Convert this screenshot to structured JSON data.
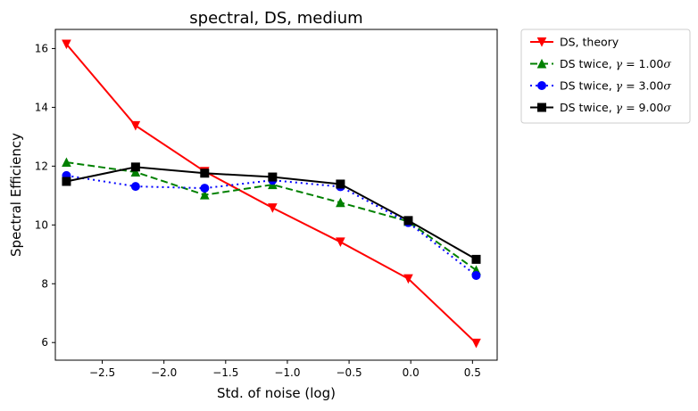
{
  "chart_data": {
    "type": "line",
    "title": "spectral, DS, medium",
    "xlabel": "Std. of noise (log)",
    "ylabel": "Spectral Efficiency",
    "xlim": [
      -2.88,
      0.7
    ],
    "ylim": [
      5.4,
      16.65
    ],
    "xticks": [
      -2.5,
      -2.0,
      -1.5,
      -1.0,
      -0.5,
      0.0,
      0.5
    ],
    "xtick_labels": [
      "−2.5",
      "−2.0",
      "−1.5",
      "−1.0",
      "−0.5",
      "0.0",
      "0.5"
    ],
    "yticks": [
      6,
      8,
      10,
      12,
      14,
      16
    ],
    "ytick_labels": [
      "6",
      "8",
      "10",
      "12",
      "14",
      "16"
    ],
    "grid": false,
    "legend_position": "outside-top-right",
    "x": [
      -2.79,
      -2.23,
      -1.67,
      -1.12,
      -0.57,
      -0.02,
      0.53
    ],
    "series": [
      {
        "name": "DS, theory",
        "prefix": "DS, theory",
        "gamma": "",
        "color": "#ff0000",
        "dash": "",
        "marker": "triangle-down",
        "values": [
          16.15,
          13.38,
          11.82,
          10.58,
          9.42,
          8.17,
          5.98
        ]
      },
      {
        "name": "DS twice, γ = 1.00σ",
        "prefix": "DS twice, ",
        "gamma": "1.00",
        "color": "#008000",
        "dash": "8,4",
        "marker": "triangle-up",
        "values": [
          12.13,
          11.8,
          11.02,
          11.37,
          10.76,
          10.12,
          8.46
        ]
      },
      {
        "name": "DS twice, γ = 3.00σ",
        "prefix": "DS twice, ",
        "gamma": "3.00",
        "color": "#0000ff",
        "dash": "2,4",
        "marker": "circle",
        "values": [
          11.68,
          11.31,
          11.25,
          11.52,
          11.3,
          10.08,
          8.28
        ]
      },
      {
        "name": "DS twice, γ = 9.00σ",
        "prefix": "DS twice, ",
        "gamma": "9.00",
        "color": "#000000",
        "dash": "",
        "marker": "square",
        "values": [
          11.48,
          11.97,
          11.76,
          11.63,
          11.39,
          10.15,
          8.83
        ]
      }
    ]
  }
}
